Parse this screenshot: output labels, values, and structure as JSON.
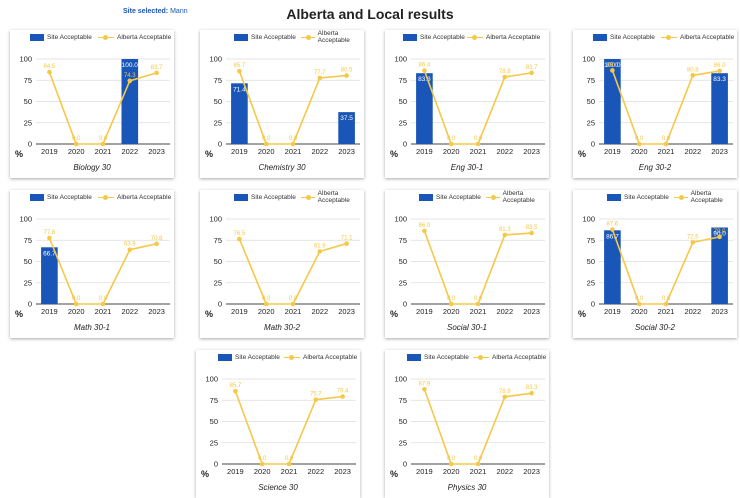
{
  "header": {
    "site_label": "Site selected:",
    "site_value": "Mann",
    "title": "Alberta and Local results"
  },
  "legend": {
    "site": "Site Acceptable",
    "alberta": "Alberta Acceptable"
  },
  "axis_unit": "%",
  "colors": {
    "bar": "#1a55b8",
    "line": "#f6c847",
    "grid": "#dddddd"
  },
  "chart_data": [
    {
      "type": "bar",
      "title": "Biology 30",
      "categories": [
        "2019",
        "2020",
        "2021",
        "2022",
        "2023"
      ],
      "ylim": [
        0,
        100
      ],
      "yticks": [
        0,
        25,
        50,
        75,
        100
      ],
      "series": [
        {
          "name": "Site Acceptable",
          "values": [
            null,
            null,
            null,
            100.0,
            null
          ],
          "labels": [
            "",
            "",
            "",
            "100.0",
            ""
          ]
        },
        {
          "name": "Alberta Acceptable",
          "type": "line",
          "values": [
            84.5,
            0,
            0,
            74.3,
            83.7
          ],
          "labels": [
            "84.5",
            "0.0",
            "0.0",
            "74.3",
            "83.7"
          ]
        }
      ]
    },
    {
      "type": "bar",
      "title": "Chemistry 30",
      "categories": [
        "2019",
        "2020",
        "2021",
        "2022",
        "2023"
      ],
      "ylim": [
        0,
        100
      ],
      "yticks": [
        0,
        25,
        50,
        75,
        100
      ],
      "series": [
        {
          "name": "Site Acceptable",
          "values": [
            71.4,
            null,
            null,
            null,
            37.5
          ],
          "labels": [
            "71.4",
            "",
            "",
            "",
            "37.5"
          ]
        },
        {
          "name": "Alberta Acceptable",
          "type": "line",
          "values": [
            85.7,
            0,
            0,
            77.7,
            80.5
          ],
          "labels": [
            "85.7",
            "0.0",
            "0.0",
            "77.7",
            "80.5"
          ]
        }
      ]
    },
    {
      "type": "bar",
      "title": "Eng 30-1",
      "categories": [
        "2019",
        "2020",
        "2021",
        "2022",
        "2023"
      ],
      "ylim": [
        0,
        100
      ],
      "yticks": [
        0,
        25,
        50,
        75,
        100
      ],
      "series": [
        {
          "name": "Site Acceptable",
          "values": [
            83.3,
            null,
            null,
            null,
            null
          ],
          "labels": [
            "83.3",
            "",
            "",
            "",
            ""
          ]
        },
        {
          "name": "Alberta Acceptable",
          "type": "line",
          "values": [
            86.4,
            0,
            0,
            78.8,
            83.7
          ],
          "labels": [
            "86.4",
            "0.0",
            "0.0",
            "78.8",
            "83.7"
          ]
        }
      ]
    },
    {
      "type": "bar",
      "title": "Eng 30-2",
      "categories": [
        "2019",
        "2020",
        "2021",
        "2022",
        "2023"
      ],
      "ylim": [
        0,
        100
      ],
      "yticks": [
        0,
        25,
        50,
        75,
        100
      ],
      "series": [
        {
          "name": "Site Acceptable",
          "values": [
            100.0,
            null,
            null,
            null,
            83.3
          ],
          "labels": [
            "100.0",
            "",
            "",
            "",
            "83.3"
          ]
        },
        {
          "name": "Alberta Acceptable",
          "type": "line",
          "values": [
            86.6,
            0,
            0,
            80.8,
            86.0
          ],
          "labels": [
            "86.6",
            "0.0",
            "0.0",
            "80.8",
            "86.0"
          ]
        }
      ]
    },
    {
      "type": "bar",
      "title": "Math 30-1",
      "categories": [
        "2019",
        "2020",
        "2021",
        "2022",
        "2023"
      ],
      "ylim": [
        0,
        100
      ],
      "yticks": [
        0,
        25,
        50,
        75,
        100
      ],
      "series": [
        {
          "name": "Site Acceptable",
          "values": [
            66.7,
            null,
            null,
            null,
            null
          ],
          "labels": [
            "66.7",
            "",
            "",
            "",
            ""
          ]
        },
        {
          "name": "Alberta Acceptable",
          "type": "line",
          "values": [
            77.6,
            0,
            0,
            63.9,
            70.8
          ],
          "labels": [
            "77.6",
            "0.0",
            "0.0",
            "63.9",
            "70.8"
          ]
        }
      ]
    },
    {
      "type": "bar",
      "title": "Math 30-2",
      "categories": [
        "2019",
        "2020",
        "2021",
        "2022",
        "2023"
      ],
      "ylim": [
        0,
        100
      ],
      "yticks": [
        0,
        25,
        50,
        75,
        100
      ],
      "series": [
        {
          "name": "Site Acceptable",
          "values": [
            null,
            null,
            null,
            null,
            null
          ],
          "labels": [
            "",
            "",
            "",
            "",
            ""
          ]
        },
        {
          "name": "Alberta Acceptable",
          "type": "line",
          "values": [
            76.5,
            0,
            0,
            61.9,
            71.1
          ],
          "labels": [
            "76.5",
            "0.0",
            "0.0",
            "61.9",
            "71.1"
          ]
        }
      ]
    },
    {
      "type": "bar",
      "title": "Social 30-1",
      "categories": [
        "2019",
        "2020",
        "2021",
        "2022",
        "2023"
      ],
      "ylim": [
        0,
        100
      ],
      "yticks": [
        0,
        25,
        50,
        75,
        100
      ],
      "series": [
        {
          "name": "Site Acceptable",
          "values": [
            null,
            null,
            null,
            null,
            null
          ],
          "labels": [
            "",
            "",
            "",
            "",
            ""
          ]
        },
        {
          "name": "Alberta Acceptable",
          "type": "line",
          "values": [
            86.0,
            0,
            0,
            81.3,
            83.5
          ],
          "labels": [
            "86.0",
            "0.0",
            "0.0",
            "81.3",
            "83.5"
          ]
        }
      ]
    },
    {
      "type": "bar",
      "title": "Social 30-2",
      "categories": [
        "2019",
        "2020",
        "2021",
        "2022",
        "2023"
      ],
      "ylim": [
        0,
        100
      ],
      "yticks": [
        0,
        25,
        50,
        75,
        100
      ],
      "series": [
        {
          "name": "Site Acceptable",
          "values": [
            86.7,
            null,
            null,
            null,
            90.0
          ],
          "labels": [
            "86.7",
            "",
            "",
            "",
            "90.0"
          ]
        },
        {
          "name": "Alberta Acceptable",
          "type": "line",
          "values": [
            87.6,
            0,
            0,
            72.5,
            79.0
          ],
          "labels": [
            "87.6",
            "0.0",
            "0.0",
            "72.5",
            "79.0"
          ]
        }
      ]
    },
    {
      "type": "bar",
      "title": "Science 30",
      "categories": [
        "2019",
        "2020",
        "2021",
        "2022",
        "2023"
      ],
      "ylim": [
        0,
        100
      ],
      "yticks": [
        0,
        25,
        50,
        75,
        100
      ],
      "series": [
        {
          "name": "Site Acceptable",
          "values": [
            null,
            null,
            null,
            null,
            null
          ],
          "labels": [
            "",
            "",
            "",
            "",
            ""
          ]
        },
        {
          "name": "Alberta Acceptable",
          "type": "line",
          "values": [
            85.7,
            0,
            0,
            75.7,
            79.4
          ],
          "labels": [
            "85.7",
            "0.0",
            "0.0",
            "75.7",
            "79.4"
          ]
        }
      ]
    },
    {
      "type": "bar",
      "title": "Physics 30",
      "categories": [
        "2019",
        "2020",
        "2021",
        "2022",
        "2023"
      ],
      "ylim": [
        0,
        100
      ],
      "yticks": [
        0,
        25,
        50,
        75,
        100
      ],
      "series": [
        {
          "name": "Site Acceptable",
          "values": [
            null,
            null,
            null,
            null,
            null
          ],
          "labels": [
            "",
            "",
            "",
            "",
            ""
          ]
        },
        {
          "name": "Alberta Acceptable",
          "type": "line",
          "values": [
            87.9,
            0,
            0,
            78.9,
            83.3
          ],
          "labels": [
            "87.9",
            "0.0",
            "0.0",
            "78.9",
            "83.3"
          ]
        }
      ]
    }
  ]
}
